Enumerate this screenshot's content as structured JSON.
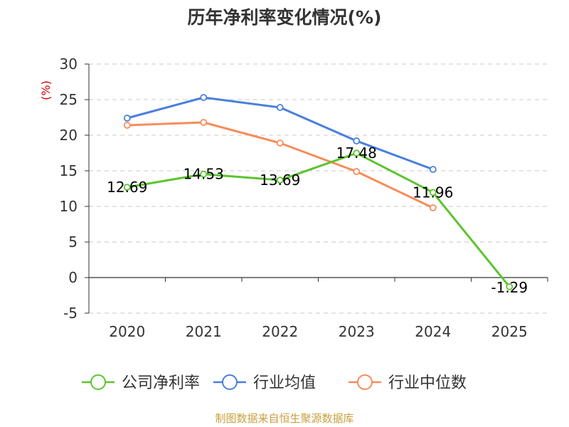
{
  "chart_data": {
    "type": "line",
    "title": "历年净利率变化情况(%)",
    "ylabel": "(%)",
    "ylim": [
      -5,
      30
    ],
    "yticks": [
      30,
      25,
      20,
      15,
      10,
      5,
      0,
      -5
    ],
    "categories": [
      "2020",
      "2021",
      "2022",
      "2023",
      "2024",
      "2025"
    ],
    "grid": true,
    "legend_position": "bottom",
    "series": [
      {
        "name": "公司净利率",
        "color": "#5dc42f",
        "values": [
          12.69,
          14.53,
          13.69,
          17.48,
          11.96,
          -1.29
        ],
        "labels": [
          "12.69",
          "14.53",
          "13.69",
          "17.48",
          "11.96",
          "-1.29"
        ]
      },
      {
        "name": "行业均值",
        "color": "#4a7fdc",
        "values": [
          22.4,
          25.3,
          23.9,
          19.2,
          15.2,
          null
        ],
        "labels": []
      },
      {
        "name": "行业中位数",
        "color": "#f78c5a",
        "values": [
          21.4,
          21.8,
          18.9,
          14.9,
          9.8,
          null
        ],
        "labels": []
      }
    ]
  },
  "footer": {
    "source": "制图数据来自恒生聚源数据库",
    "source_color": "#c8a040"
  },
  "style": {
    "unit_color": "#cc0000",
    "grid_color": "#c8c8c8",
    "axis_color": "#333333"
  }
}
